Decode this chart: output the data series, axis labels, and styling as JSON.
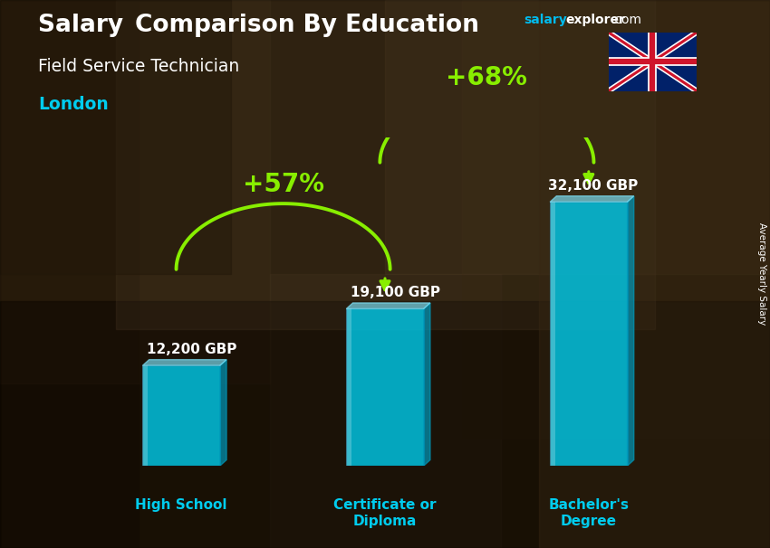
{
  "title_main_salary": "Salary ",
  "title_main_comparison": "Comparison By Education",
  "title_sub": "Field Service Technician",
  "title_city": "London",
  "categories": [
    "High School",
    "Certificate or\nDiploma",
    "Bachelor's\nDegree"
  ],
  "values": [
    12200,
    19100,
    32100
  ],
  "value_labels": [
    "12,200 GBP",
    "19,100 GBP",
    "32,100 GBP"
  ],
  "bar_color": "#00c8e8",
  "bar_top_color": "#80e8ff",
  "bar_right_color": "#0099bb",
  "bar_alpha": 0.82,
  "pct_labels": [
    "+57%",
    "+68%"
  ],
  "pct_color": "#88ee00",
  "arrow_color": "#88ee00",
  "category_color": "#00ccee",
  "watermark_salary": "salary",
  "watermark_explorer": "explorer",
  "watermark_com": ".com",
  "watermark_color_salary": "#00bbee",
  "watermark_color_rest": "white",
  "side_label": "Average Yearly Salary",
  "ylim": [
    0,
    40000
  ],
  "bg_colors": [
    "#4a3520",
    "#2a1a08",
    "#5a4530",
    "#3a2a15"
  ],
  "value_label_color": "white",
  "value_label_fontsize": 11
}
